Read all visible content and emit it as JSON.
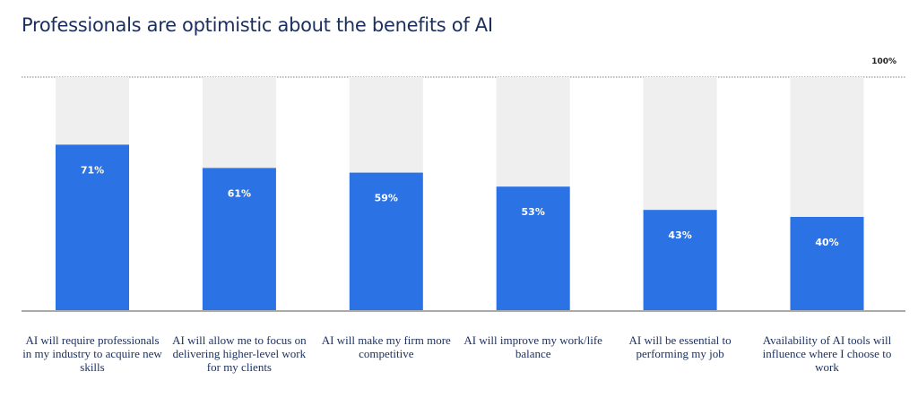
{
  "chart_data": {
    "type": "bar",
    "title": "Professionals are optimistic about the benefits of AI",
    "categories": [
      "AI will require professionals in my industry to acquire new skills",
      "AI will allow me to focus on delivering higher-level work for my clients",
      "AI will make my firm more competitive",
      "AI will improve my work/life balance",
      "AI will be essential to performing my job",
      "Availability of AI tools will influence where I choose to work"
    ],
    "values": [
      71,
      61,
      59,
      53,
      43,
      40
    ],
    "data_labels": [
      "71%",
      "61%",
      "59%",
      "53%",
      "43%",
      "40%"
    ],
    "ylim": [
      0,
      100
    ],
    "reference_line": {
      "value": 100,
      "label": "100%"
    },
    "grid": false,
    "xlabel": "",
    "ylabel": "",
    "colors": {
      "bar": "#2b72e4",
      "track": "#efefef",
      "title": "#1b2f5e"
    }
  }
}
